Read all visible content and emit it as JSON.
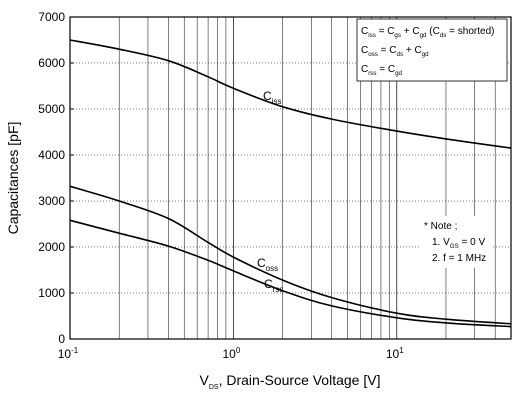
{
  "chart_data": {
    "type": "line",
    "xlabel": {
      "main": "V",
      "sub": "DS",
      "rest": ", Drain-Source Voltage [V]"
    },
    "ylabel": "Capacitances [pF]",
    "x_scale": "log",
    "xlim": [
      0.1,
      50
    ],
    "ylim": [
      0,
      7000
    ],
    "grid": true,
    "x_ticks": [
      {
        "base": "10",
        "exp": "-1",
        "value": 0.1
      },
      {
        "base": "10",
        "exp": "0",
        "value": 1
      },
      {
        "base": "10",
        "exp": "1",
        "value": 10
      }
    ],
    "y_ticks": [
      0,
      1000,
      2000,
      3000,
      4000,
      5000,
      6000,
      7000
    ],
    "series": [
      {
        "name": "Ciss",
        "label_main": "C",
        "label_sub": "iss",
        "x": [
          0.1,
          0.2,
          0.4,
          0.7,
          1,
          2,
          4,
          10,
          20,
          50
        ],
        "y": [
          6500,
          6300,
          6050,
          5700,
          5450,
          5050,
          4780,
          4520,
          4350,
          4150
        ]
      },
      {
        "name": "Coss",
        "label_main": "C",
        "label_sub": "oss",
        "x": [
          0.1,
          0.2,
          0.4,
          0.7,
          1,
          2,
          4,
          10,
          20,
          50
        ],
        "y": [
          3320,
          3000,
          2620,
          2100,
          1780,
          1280,
          900,
          560,
          430,
          330
        ]
      },
      {
        "name": "Crss",
        "label_main": "C",
        "label_sub": "rss",
        "x": [
          0.1,
          0.2,
          0.4,
          0.7,
          1,
          2,
          4,
          10,
          20,
          50
        ],
        "y": [
          2580,
          2300,
          2020,
          1710,
          1480,
          1050,
          720,
          460,
          350,
          270
        ]
      }
    ],
    "legend_box": {
      "placement": "top-right",
      "lines": [
        [
          {
            "t": "C"
          },
          {
            "t": "iss",
            "sub": true
          },
          {
            "t": " = C"
          },
          {
            "t": "gs",
            "sub": true
          },
          {
            "t": " + C"
          },
          {
            "t": "gd",
            "sub": true
          },
          {
            "t": " (C"
          },
          {
            "t": "ds",
            "sub": true
          },
          {
            "t": " = shorted)"
          }
        ],
        [
          {
            "t": "C"
          },
          {
            "t": "oss",
            "sub": true
          },
          {
            "t": " = C"
          },
          {
            "t": "ds",
            "sub": true
          },
          {
            "t": " + C"
          },
          {
            "t": "gd",
            "sub": true
          }
        ],
        [
          {
            "t": "C"
          },
          {
            "t": "rss",
            "sub": true
          },
          {
            "t": " = C"
          },
          {
            "t": "gd",
            "sub": true
          }
        ]
      ]
    },
    "note_box": {
      "placement": "right",
      "lines": [
        [
          {
            "t": "* Note ;"
          }
        ],
        [
          {
            "t": "1. V"
          },
          {
            "t": "GS",
            "sub": true
          },
          {
            "t": " = 0 V"
          }
        ],
        [
          {
            "t": "2. f = 1 MHz"
          }
        ]
      ]
    }
  }
}
